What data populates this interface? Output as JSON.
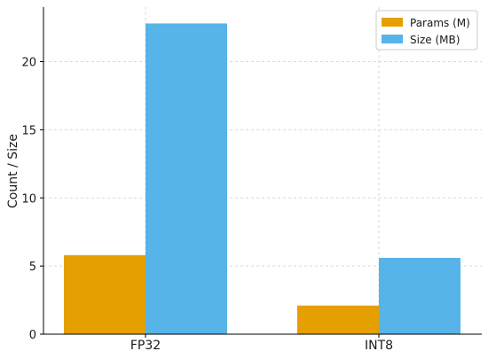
{
  "chart_data": {
    "type": "bar",
    "title": "",
    "xlabel": "",
    "ylabel": "Count / Size",
    "categories": [
      "FP32",
      "INT8"
    ],
    "series": [
      {
        "name": "Params (M)",
        "values": [
          5.8,
          2.1
        ],
        "color": "#E69F00"
      },
      {
        "name": "Size (MB)",
        "values": [
          22.8,
          5.6
        ],
        "color": "#56B4E9"
      }
    ],
    "ylim": [
      0,
      24
    ],
    "yticks": [
      0,
      5,
      10,
      15,
      20
    ],
    "grid": true,
    "legend": "top-right"
  }
}
